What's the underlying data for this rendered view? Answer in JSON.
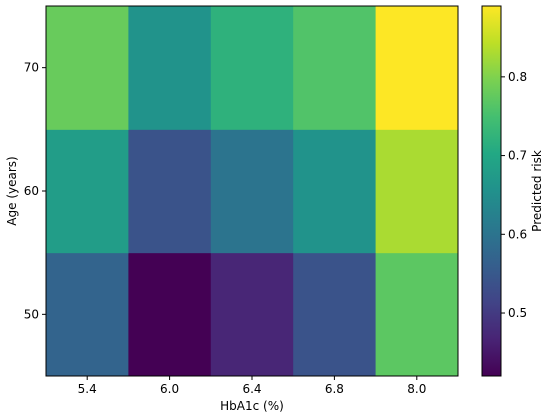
{
  "chart_data": {
    "type": "heatmap",
    "title": "",
    "xlabel": "HbA1c (%)",
    "ylabel": "Age (years)",
    "x_categories": [
      "5.4",
      "6.0",
      "6.4",
      "6.8",
      "8.0"
    ],
    "y_categories": [
      "50",
      "60",
      "70"
    ],
    "values": [
      [
        0.57,
        0.42,
        0.47,
        0.54,
        0.77
      ],
      [
        0.68,
        0.54,
        0.6,
        0.66,
        0.83
      ],
      [
        0.78,
        0.66,
        0.72,
        0.76,
        0.89
      ]
    ],
    "colormap": "viridis",
    "colorbar": {
      "label": "Predicted risk",
      "range": [
        0.42,
        0.89
      ],
      "ticks": [
        "0.5",
        "0.6",
        "0.7",
        "0.8"
      ],
      "tick_values": [
        0.5,
        0.6,
        0.7,
        0.8
      ]
    }
  }
}
